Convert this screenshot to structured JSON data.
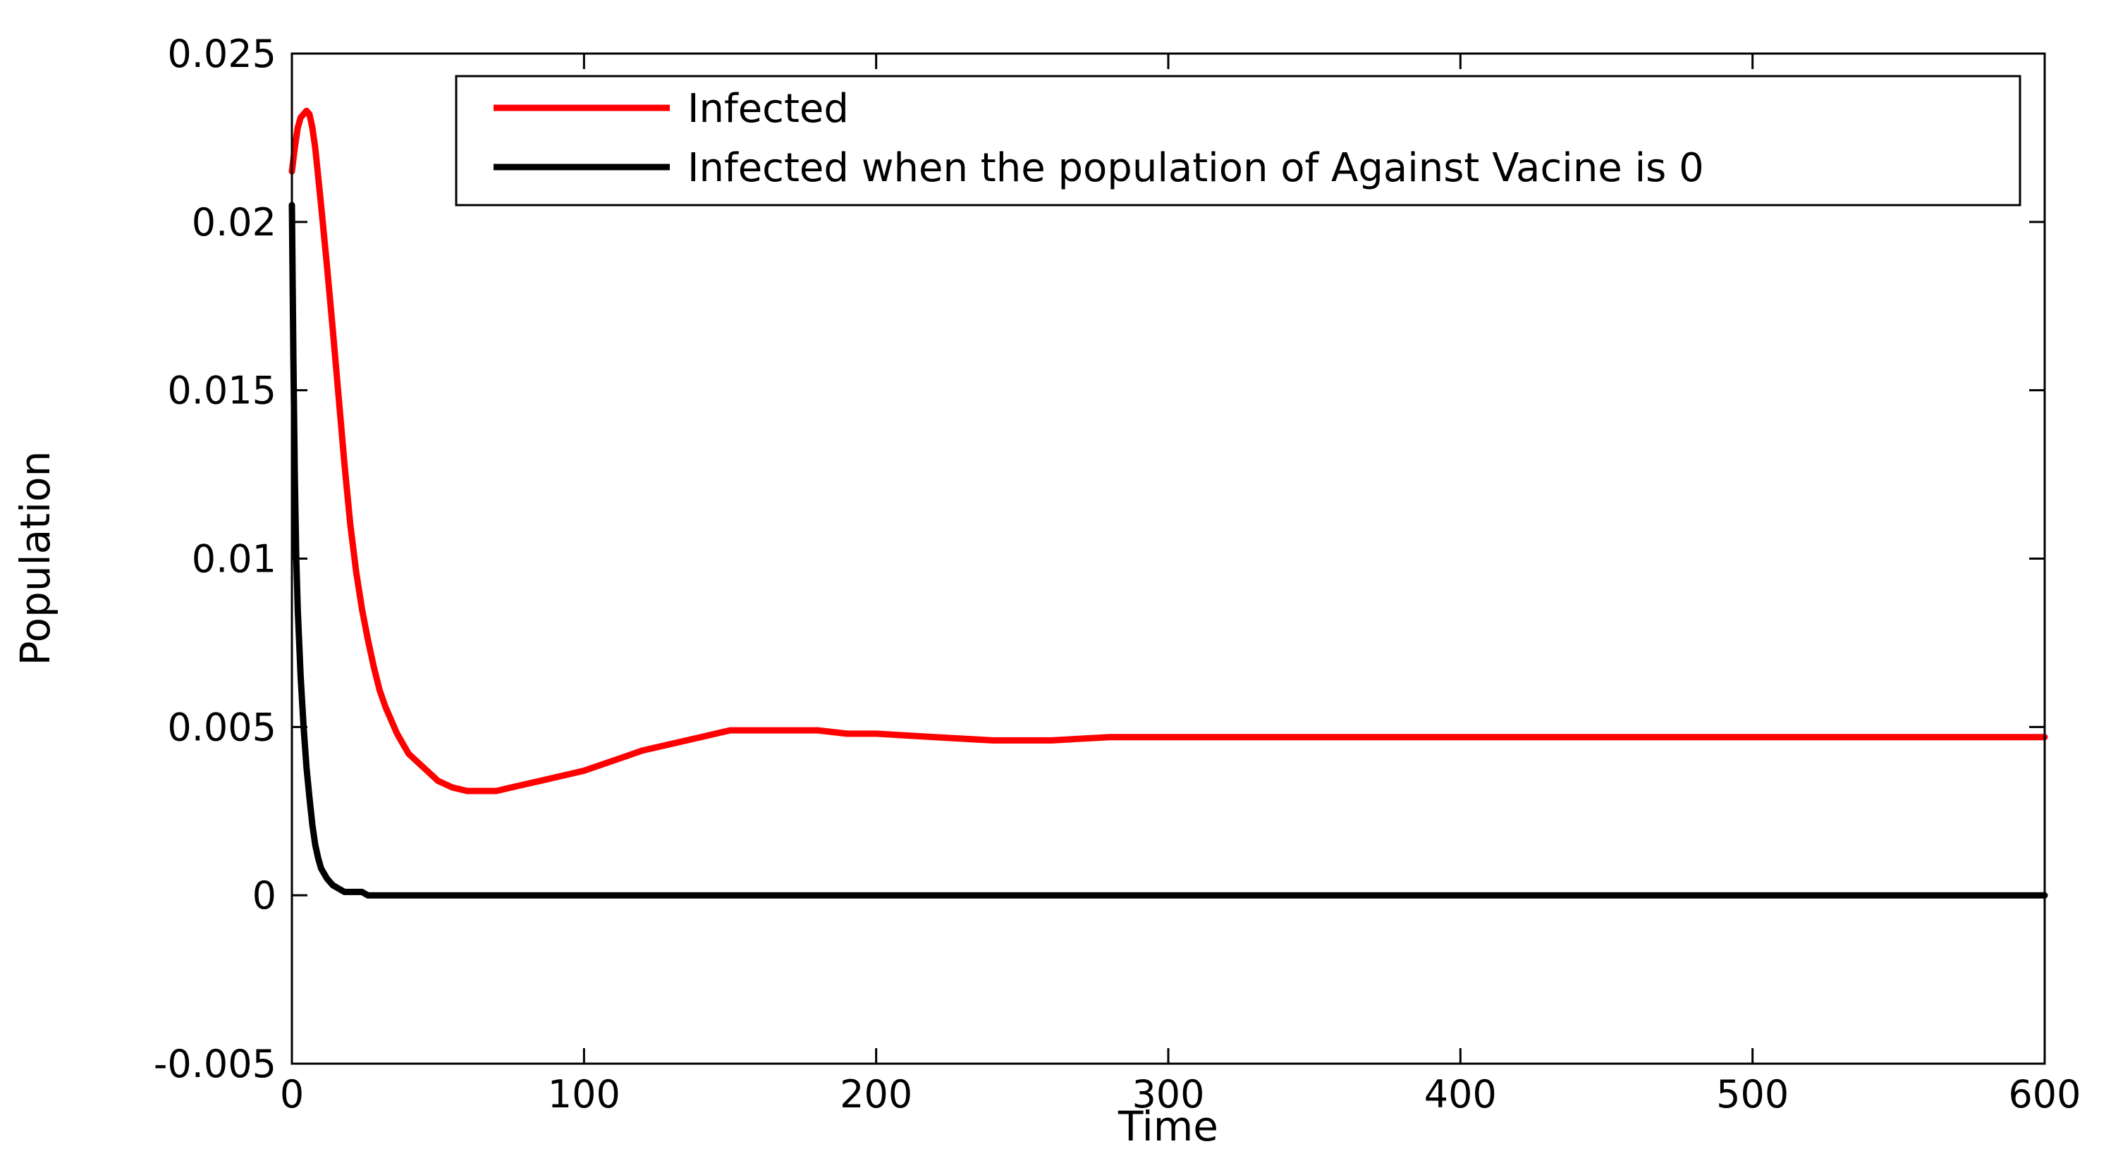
{
  "chart_data": {
    "type": "line",
    "title": "",
    "xlabel": "Time",
    "ylabel": "Population",
    "xlim": [
      0,
      600
    ],
    "ylim": [
      -0.005,
      0.025
    ],
    "x_ticks": [
      0,
      100,
      200,
      300,
      400,
      500,
      600
    ],
    "x_tick_labels": [
      "0",
      "100",
      "200",
      "300",
      "400",
      "500",
      "600"
    ],
    "y_ticks": [
      -0.005,
      0,
      0.005,
      0.01,
      0.015,
      0.02,
      0.025
    ],
    "y_tick_labels": [
      "-0.005",
      "0",
      "0.005",
      "0.01",
      "0.015",
      "0.02",
      "0.025"
    ],
    "grid": false,
    "legend_position": "top-right",
    "series": [
      {
        "name": "Infected",
        "color": "#ff0000",
        "x": [
          0,
          1,
          2,
          3,
          4,
          5,
          6,
          7,
          8,
          10,
          12,
          14,
          16,
          18,
          20,
          22,
          24,
          26,
          28,
          30,
          32,
          34,
          36,
          38,
          40,
          45,
          50,
          55,
          60,
          65,
          70,
          75,
          80,
          85,
          90,
          95,
          100,
          110,
          120,
          130,
          140,
          150,
          160,
          170,
          180,
          190,
          200,
          220,
          240,
          260,
          280,
          300,
          350,
          400,
          450,
          500,
          550,
          600
        ],
        "values": [
          0.0215,
          0.0222,
          0.0228,
          0.0231,
          0.0232,
          0.0233,
          0.0232,
          0.0228,
          0.0222,
          0.0205,
          0.0187,
          0.0168,
          0.0148,
          0.0128,
          0.011,
          0.0096,
          0.0085,
          0.0076,
          0.0068,
          0.0061,
          0.0056,
          0.0052,
          0.0048,
          0.0045,
          0.0042,
          0.0038,
          0.0034,
          0.0032,
          0.0031,
          0.0031,
          0.0031,
          0.0032,
          0.0033,
          0.0034,
          0.0035,
          0.0036,
          0.0037,
          0.004,
          0.0043,
          0.0045,
          0.0047,
          0.0049,
          0.0049,
          0.0049,
          0.0049,
          0.0048,
          0.0048,
          0.0047,
          0.0046,
          0.0046,
          0.0047,
          0.0047,
          0.0047,
          0.0047,
          0.0047,
          0.0047,
          0.0047,
          0.0047
        ]
      },
      {
        "name": "Infected when the population of Against Vacine is 0",
        "color": "#000000",
        "x": [
          0,
          0.5,
          1,
          1.5,
          2,
          3,
          4,
          5,
          6,
          7,
          8,
          9,
          10,
          12,
          14,
          16,
          18,
          20,
          22,
          24,
          26,
          30,
          40,
          60,
          100,
          200,
          300,
          400,
          500,
          600
        ],
        "values": [
          0.0205,
          0.016,
          0.0125,
          0.01,
          0.0085,
          0.0065,
          0.005,
          0.0038,
          0.0029,
          0.0021,
          0.0015,
          0.0011,
          0.0008,
          0.0005,
          0.0003,
          0.0002,
          0.0001,
          0.0001,
          0.0001,
          0.0001,
          0.0,
          0.0,
          0.0,
          0.0,
          0.0,
          0.0,
          0.0,
          0.0,
          0.0,
          0.0
        ]
      }
    ]
  }
}
